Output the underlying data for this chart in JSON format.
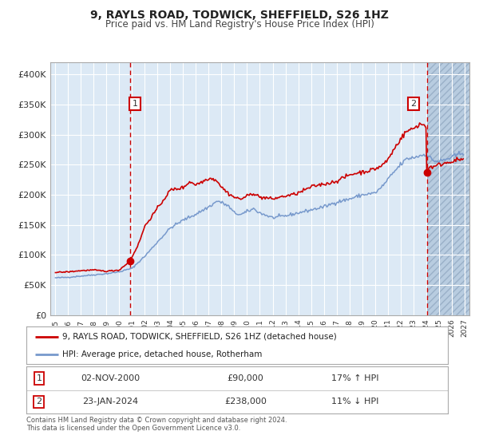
{
  "title": "9, RAYLS ROAD, TODWICK, SHEFFIELD, S26 1HZ",
  "subtitle": "Price paid vs. HM Land Registry's House Price Index (HPI)",
  "legend_line1": "9, RAYLS ROAD, TODWICK, SHEFFIELD, S26 1HZ (detached house)",
  "legend_line2": "HPI: Average price, detached house, Rotherham",
  "sale1_date": "02-NOV-2000",
  "sale1_price": "£90,000",
  "sale1_hpi": "17% ↑ HPI",
  "sale2_date": "23-JAN-2024",
  "sale2_price": "£238,000",
  "sale2_hpi": "11% ↓ HPI",
  "ylim": [
    0,
    420000
  ],
  "xlim_start": 1994.6,
  "xlim_end": 2027.4,
  "background_color": "#ffffff",
  "plot_bg_color": "#dce9f5",
  "hatched_bg_color": "#c8d8e8",
  "grid_color": "#ffffff",
  "red_line_color": "#cc0000",
  "blue_line_color": "#7799cc",
  "dashed_vline_color": "#cc0000",
  "marker1_x": 2000.83,
  "marker1_y": 90000,
  "marker2_x": 2024.06,
  "marker2_y": 238000,
  "vline1_x": 2000.83,
  "vline2_x": 2024.06,
  "yticks": [
    0,
    50000,
    100000,
    150000,
    200000,
    250000,
    300000,
    350000,
    400000
  ],
  "ytick_labels": [
    "£0",
    "£50K",
    "£100K",
    "£150K",
    "£200K",
    "£250K",
    "£300K",
    "£350K",
    "£400K"
  ],
  "xtick_years": [
    1995,
    1996,
    1997,
    1998,
    1999,
    2000,
    2001,
    2002,
    2003,
    2004,
    2005,
    2006,
    2007,
    2008,
    2009,
    2010,
    2011,
    2012,
    2013,
    2014,
    2015,
    2016,
    2017,
    2018,
    2019,
    2020,
    2021,
    2022,
    2023,
    2024,
    2025,
    2026,
    2027
  ],
  "footer_line1": "Contains HM Land Registry data © Crown copyright and database right 2024.",
  "footer_line2": "This data is licensed under the Open Government Licence v3.0."
}
